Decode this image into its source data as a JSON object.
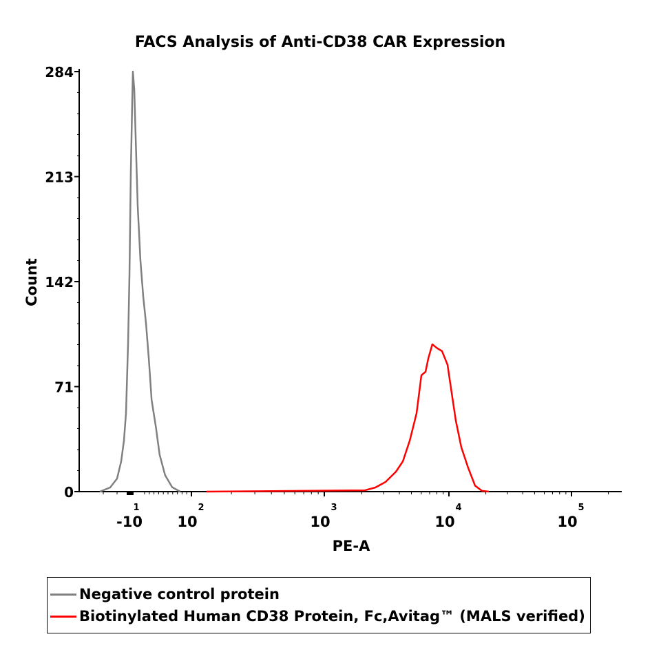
{
  "chart_data": {
    "type": "line",
    "title": "FACS Analysis of Anti-CD38 CAR Expression",
    "xlabel": "PE-A",
    "ylabel": "Count",
    "ylim": [
      0,
      284
    ],
    "x_scale": "biexponential",
    "xlim": [
      -35,
      250000
    ],
    "yticks": [
      0,
      71,
      142,
      213,
      284
    ],
    "xticks": [
      {
        "value": -10,
        "base": "-10",
        "exp": "1"
      },
      {
        "value": 100,
        "base": "10",
        "exp": "2"
      },
      {
        "value": 1000,
        "base": "10",
        "exp": "3"
      },
      {
        "value": 10000,
        "base": "10",
        "exp": "4"
      },
      {
        "value": 100000,
        "base": "10",
        "exp": "5"
      }
    ],
    "grid": false,
    "legend_position": "bottom",
    "series": [
      {
        "name": "Negative control protein",
        "color": "#808080",
        "x": [
          -32.5,
          -25,
          -20,
          -17,
          -15,
          -13.5,
          -12,
          -11,
          -10,
          -9,
          -8.5,
          -7.5,
          -6.5,
          -5,
          -3,
          -1,
          3,
          9,
          15,
          24,
          32,
          44,
          59,
          76
        ],
        "y": [
          0,
          2.8,
          8.8,
          20.5,
          34.5,
          53,
          100,
          146,
          216,
          263,
          284,
          272,
          240,
          193,
          156,
          132,
          114,
          90,
          62,
          44,
          25,
          11,
          3,
          0
        ]
      },
      {
        "name": "Biotinylated Human CD38 Protein, Fc,Avitag™ (MALS verified)",
        "color": "#ff0000",
        "x": [
          130,
          2120,
          2570,
          3100,
          3760,
          4270,
          4850,
          5500,
          6010,
          6490,
          6830,
          7360,
          8050,
          8810,
          9750,
          10520,
          11380,
          12620,
          14360,
          16340,
          18610,
          21200
        ],
        "y": [
          0,
          0.9,
          2.8,
          6.5,
          13.5,
          20.5,
          34.5,
          53,
          78.7,
          81,
          90,
          99.6,
          97,
          95,
          85.7,
          67,
          48,
          30,
          16,
          4,
          0.5,
          0
        ]
      }
    ]
  }
}
